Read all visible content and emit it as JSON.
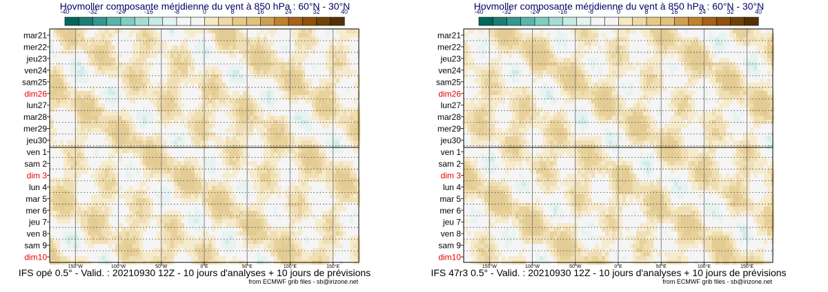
{
  "colors": {
    "scale": [
      "#01665e",
      "#1d7d74",
      "#35978f",
      "#5ab4ac",
      "#80cdc1",
      "#a7dcd3",
      "#c7eae5",
      "#e2f3f0",
      "#f5f5f5",
      "#f5f5f5",
      "#f6e8c3",
      "#efd9a6",
      "#e6c984",
      "#dfc27d",
      "#cfa052",
      "#bf812d",
      "#a6611a",
      "#8c510a",
      "#6e4308",
      "#543005"
    ],
    "title": "#000066",
    "weekend": "#e60000",
    "text": "#000000"
  },
  "chart_data": [
    {
      "type": "heatmap",
      "title": "Hovmoller composante méridienne du vent à 850 hPa : 60°N - 30°N",
      "colorbar_ticks": [
        "-40",
        "-32",
        "-24",
        "-16",
        "-8",
        "0",
        "8",
        "16",
        "24",
        "32",
        "40"
      ],
      "colorbar_range": [
        -40,
        40
      ],
      "y_labels": [
        {
          "label": "mar21",
          "weekend": false
        },
        {
          "label": "mer22",
          "weekend": false
        },
        {
          "label": "jeu23",
          "weekend": false
        },
        {
          "label": "ven24",
          "weekend": false
        },
        {
          "label": "sam25",
          "weekend": false
        },
        {
          "label": "dim26",
          "weekend": true
        },
        {
          "label": "lun27",
          "weekend": false
        },
        {
          "label": "mar28",
          "weekend": false
        },
        {
          "label": "mer29",
          "weekend": false
        },
        {
          "label": "jeu30",
          "weekend": false
        },
        {
          "label": "ven 1",
          "weekend": false
        },
        {
          "label": "sam 2",
          "weekend": false
        },
        {
          "label": "dim 3",
          "weekend": true
        },
        {
          "label": "lun 4",
          "weekend": false
        },
        {
          "label": "mar 5",
          "weekend": false
        },
        {
          "label": "mer 6",
          "weekend": false
        },
        {
          "label": "jeu 7",
          "weekend": false
        },
        {
          "label": "ven 8",
          "weekend": false
        },
        {
          "label": "sam 9",
          "weekend": false
        },
        {
          "label": "dim10",
          "weekend": true
        }
      ],
      "x_ticks": [
        {
          "label": "150°W",
          "lon": -150
        },
        {
          "label": "100°W",
          "lon": -100
        },
        {
          "label": "50°W",
          "lon": -50
        },
        {
          "label": "0°E",
          "lon": 0
        },
        {
          "label": "50°E",
          "lon": 50
        },
        {
          "label": "100°E",
          "lon": 100
        },
        {
          "label": "150°E",
          "lon": 150
        }
      ],
      "x_range": [
        -180,
        180
      ],
      "analysis_split_label": "ven 1",
      "seed": 7,
      "caption": "IFS opé 0.5° - Valid. : 20210930 12Z - 10 jours d'analyses + 10 jours de prévisions",
      "source": "from ECMWF grib files - sb@irizone.net"
    },
    {
      "type": "heatmap",
      "title": "Hovmoller composante méridienne du vent à 850 hPa : 60°N - 30°N",
      "colorbar_ticks": [
        "-40",
        "-32",
        "-24",
        "-16",
        "-8",
        "0",
        "8",
        "16",
        "24",
        "32",
        "40"
      ],
      "colorbar_range": [
        -40,
        40
      ],
      "y_labels": [
        {
          "label": "mar21",
          "weekend": false
        },
        {
          "label": "mer22",
          "weekend": false
        },
        {
          "label": "jeu23",
          "weekend": false
        },
        {
          "label": "ven24",
          "weekend": false
        },
        {
          "label": "sam25",
          "weekend": false
        },
        {
          "label": "dim26",
          "weekend": true
        },
        {
          "label": "lun27",
          "weekend": false
        },
        {
          "label": "mar28",
          "weekend": false
        },
        {
          "label": "mer29",
          "weekend": false
        },
        {
          "label": "jeu30",
          "weekend": false
        },
        {
          "label": "ven 1",
          "weekend": false
        },
        {
          "label": "sam 2",
          "weekend": false
        },
        {
          "label": "dim 3",
          "weekend": true
        },
        {
          "label": "lun 4",
          "weekend": false
        },
        {
          "label": "mar 5",
          "weekend": false
        },
        {
          "label": "mer 6",
          "weekend": false
        },
        {
          "label": "jeu 7",
          "weekend": false
        },
        {
          "label": "ven 8",
          "weekend": false
        },
        {
          "label": "sam 9",
          "weekend": false
        },
        {
          "label": "dim10",
          "weekend": true
        }
      ],
      "x_ticks": [
        {
          "label": "150°W",
          "lon": -150
        },
        {
          "label": "100°W",
          "lon": -100
        },
        {
          "label": "50°W",
          "lon": -50
        },
        {
          "label": "0°E",
          "lon": 0
        },
        {
          "label": "50°E",
          "lon": 50
        },
        {
          "label": "100°E",
          "lon": 100
        },
        {
          "label": "150°E",
          "lon": 150
        }
      ],
      "x_range": [
        -180,
        180
      ],
      "analysis_split_label": "ven 1",
      "seed": 11,
      "caption": "IFS 47r3 0.5° - Valid. : 20210930 12Z - 10 jours d'analyses + 10 jours de prévisions",
      "source": "from ECMWF grib files - sb@irizone.net"
    }
  ]
}
